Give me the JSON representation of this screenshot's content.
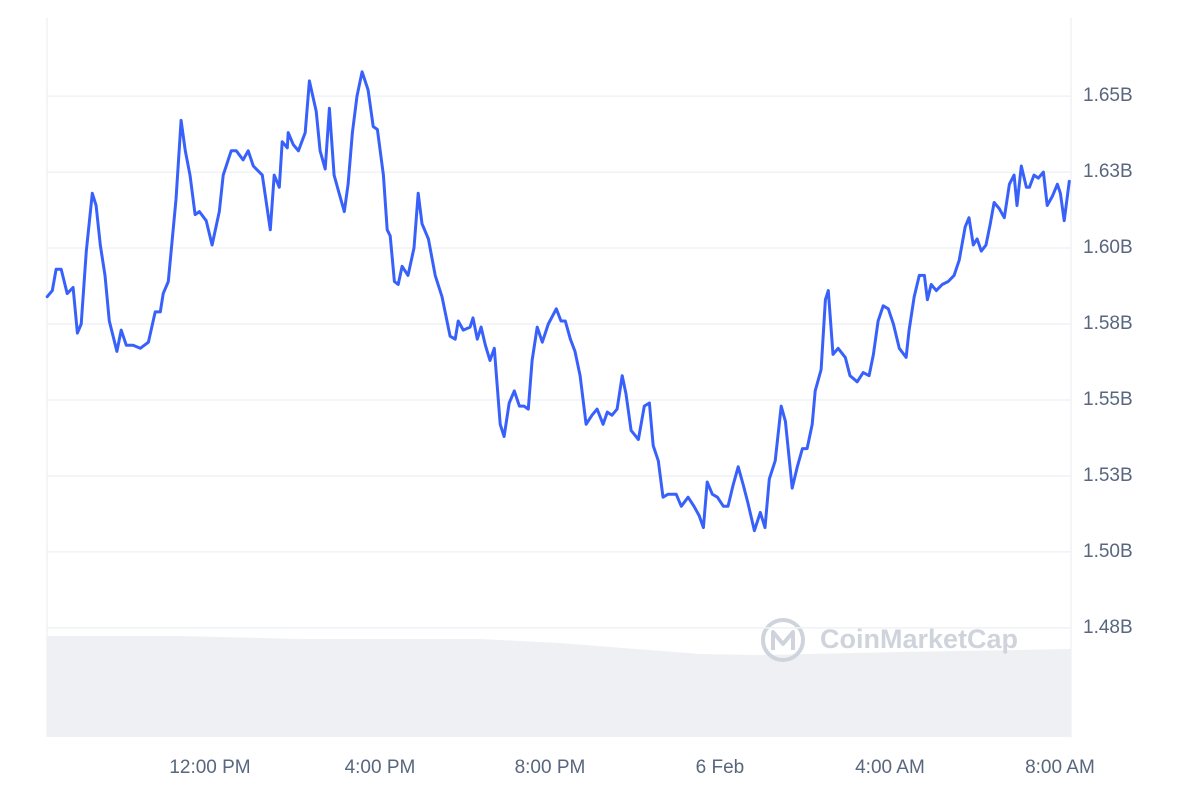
{
  "chart_data": {
    "type": "line",
    "watermark": "CoinMarketCap",
    "color": "#3861fb",
    "x": [
      8.17,
      8.29,
      8.38,
      8.5,
      8.64,
      8.78,
      8.88,
      8.97,
      9.09,
      9.23,
      9.32,
      9.42,
      9.53,
      9.63,
      9.81,
      9.91,
      10.03,
      10.19,
      10.36,
      10.55,
      10.71,
      10.83,
      10.9,
      11.02,
      11.2,
      11.32,
      11.42,
      11.53,
      11.65,
      11.75,
      11.91,
      12.05,
      12.22,
      12.31,
      12.5,
      12.62,
      12.78,
      12.9,
      13.02,
      13.23,
      13.42,
      13.51,
      13.63,
      13.7,
      13.82,
      13.84,
      13.96,
      14.08,
      14.24,
      14.34,
      14.5,
      14.59,
      14.71,
      14.81,
      14.92,
      15.02,
      15.16,
      15.25,
      15.35,
      15.46,
      15.58,
      15.72,
      15.84,
      15.94,
      16.08,
      16.17,
      16.24,
      16.34,
      16.43,
      16.52,
      16.66,
      16.8,
      16.9,
      16.99,
      17.14,
      17.3,
      17.46,
      17.65,
      17.77,
      17.84,
      17.96,
      18.12,
      18.19,
      18.29,
      18.38,
      18.48,
      18.59,
      18.69,
      18.83,
      18.92,
      19.04,
      19.16,
      19.28,
      19.39,
      19.49,
      19.58,
      19.7,
      19.82,
      19.96,
      20.15,
      20.26,
      20.36,
      20.48,
      20.59,
      20.71,
      20.85,
      20.99,
      21.11,
      21.25,
      21.35,
      21.46,
      21.58,
      21.7,
      21.79,
      21.91,
      22.08,
      22.22,
      22.34,
      22.43,
      22.55,
      22.66,
      22.78,
      22.97,
      23.09,
      23.25,
      23.39,
      23.51,
      23.61,
      23.7,
      23.82,
      23.94,
      24.08,
      24.19,
      24.31,
      24.43,
      24.55,
      24.66,
      24.81,
      24.95,
      25.06,
      25.16,
      25.3,
      25.44,
      25.54,
      25.7,
      25.82,
      25.94,
      26.05,
      26.17,
      26.24,
      26.38,
      26.48,
      26.55,
      26.66,
      26.78,
      26.95,
      27.06,
      27.23,
      27.37,
      27.51,
      27.61,
      27.72,
      27.84,
      27.96,
      28.08,
      28.22,
      28.38,
      28.45,
      28.57,
      28.69,
      28.81,
      28.88,
      28.97,
      29.09,
      29.23,
      29.37,
      29.51,
      29.63,
      29.77,
      29.86,
      29.96,
      30.05,
      30.15,
      30.26,
      30.36,
      30.45,
      30.57,
      30.69,
      30.81,
      30.92,
      30.99,
      31.09,
      31.21,
      31.28,
      31.39,
      31.49,
      31.61,
      31.7,
      31.82,
      31.94,
      32.01,
      32.1,
      32.22
    ],
    "values": [
      1.584,
      1.586,
      1.593,
      1.593,
      1.585,
      1.587,
      1.572,
      1.575,
      1.599,
      1.618,
      1.614,
      1.601,
      1.591,
      1.576,
      1.566,
      1.573,
      1.568,
      1.568,
      1.567,
      1.569,
      1.579,
      1.579,
      1.585,
      1.589,
      1.616,
      1.642,
      1.632,
      1.624,
      1.611,
      1.612,
      1.609,
      1.601,
      1.612,
      1.624,
      1.632,
      1.632,
      1.629,
      1.632,
      1.627,
      1.624,
      1.606,
      1.624,
      1.62,
      1.635,
      1.633,
      1.638,
      1.634,
      1.632,
      1.638,
      1.655,
      1.645,
      1.632,
      1.626,
      1.646,
      1.624,
      1.619,
      1.612,
      1.621,
      1.638,
      1.65,
      1.658,
      1.652,
      1.64,
      1.639,
      1.624,
      1.606,
      1.604,
      1.589,
      1.588,
      1.594,
      1.591,
      1.6,
      1.618,
      1.608,
      1.603,
      1.591,
      1.584,
      1.571,
      1.57,
      1.576,
      1.573,
      1.574,
      1.577,
      1.57,
      1.574,
      1.568,
      1.563,
      1.567,
      1.542,
      1.538,
      1.549,
      1.553,
      1.548,
      1.548,
      1.547,
      1.563,
      1.574,
      1.569,
      1.575,
      1.58,
      1.576,
      1.576,
      1.57,
      1.566,
      1.558,
      1.542,
      1.545,
      1.547,
      1.542,
      1.546,
      1.545,
      1.547,
      1.558,
      1.552,
      1.54,
      1.537,
      1.548,
      1.549,
      1.535,
      1.53,
      1.518,
      1.519,
      1.519,
      1.515,
      1.518,
      1.515,
      1.512,
      1.508,
      1.523,
      1.519,
      1.518,
      1.515,
      1.515,
      1.522,
      1.528,
      1.522,
      1.516,
      1.507,
      1.513,
      1.508,
      1.524,
      1.53,
      1.548,
      1.543,
      1.521,
      1.528,
      1.534,
      1.534,
      1.542,
      1.553,
      1.56,
      1.583,
      1.586,
      1.565,
      1.567,
      1.564,
      1.558,
      1.556,
      1.559,
      1.558,
      1.565,
      1.576,
      1.581,
      1.58,
      1.575,
      1.567,
      1.564,
      1.573,
      1.584,
      1.591,
      1.591,
      1.583,
      1.588,
      1.586,
      1.588,
      1.589,
      1.591,
      1.596,
      1.607,
      1.61,
      1.601,
      1.603,
      1.599,
      1.601,
      1.608,
      1.615,
      1.613,
      1.61,
      1.621,
      1.624,
      1.614,
      1.627,
      1.62,
      1.62,
      1.624,
      1.623,
      1.625,
      1.614,
      1.617,
      1.621,
      1.618,
      1.609,
      1.622
    ],
    "xlim": [
      8.165,
      32.26
    ],
    "ylim": [
      1.4391,
      1.6757
    ],
    "xticks": [
      {
        "value": 12,
        "label": "12:00 PM"
      },
      {
        "value": 16,
        "label": "4:00 PM"
      },
      {
        "value": 20,
        "label": "8:00 PM"
      },
      {
        "value": 24,
        "label": "6 Feb"
      },
      {
        "value": 28,
        "label": "4:00 AM"
      },
      {
        "value": 32,
        "label": "8:00 AM"
      }
    ],
    "yticks": [
      {
        "value": 1.475,
        "label": "1.48B"
      },
      {
        "value": 1.5,
        "label": "1.50B"
      },
      {
        "value": 1.525,
        "label": "1.53B"
      },
      {
        "value": 1.55,
        "label": "1.55B"
      },
      {
        "value": 1.575,
        "label": "1.58B"
      },
      {
        "value": 1.6,
        "label": "1.60B"
      },
      {
        "value": 1.625,
        "label": "1.63B"
      },
      {
        "value": 1.65,
        "label": "1.65B"
      }
    ],
    "grid": true
  }
}
